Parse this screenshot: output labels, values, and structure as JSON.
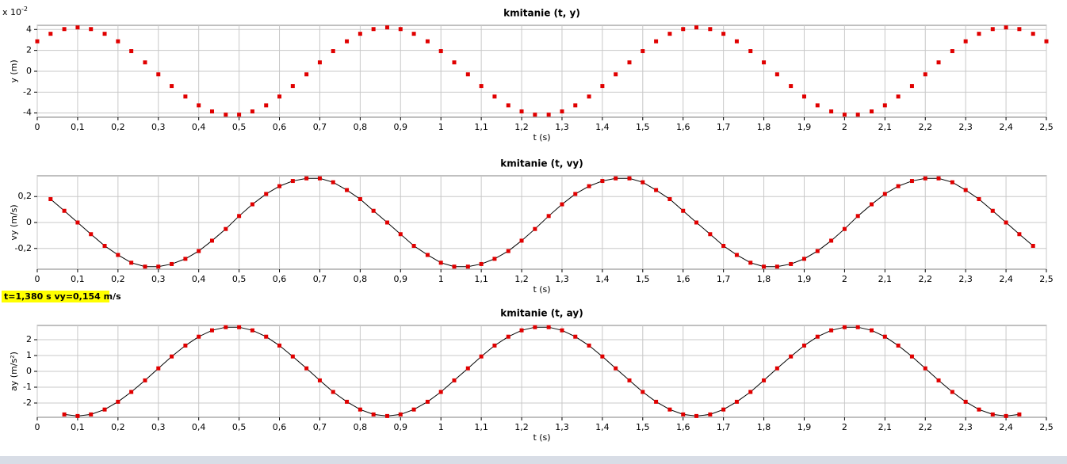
{
  "chart_data": [
    {
      "type": "scatter",
      "title": "kmitanie (t, y)",
      "xlabel": "t (s)",
      "ylabel": "y (m)",
      "y_multiplier": {
        "base": "x 10",
        "exponent": "-2"
      },
      "color": "#e00000",
      "grid": true,
      "xlim": [
        0,
        2.5
      ],
      "ylim": [
        -4.4,
        4.4
      ],
      "xticks": [
        0,
        {
          "value": 0.1,
          "label": "0,1"
        },
        {
          "value": 0.2,
          "label": "0,2"
        },
        {
          "value": 0.3,
          "label": "0,3"
        },
        {
          "value": 0.4,
          "label": "0,4"
        },
        {
          "value": 0.5,
          "label": "0,5"
        },
        {
          "value": 0.6,
          "label": "0,6"
        },
        {
          "value": 0.7,
          "label": "0,7"
        },
        {
          "value": 0.8,
          "label": "0,8"
        },
        {
          "value": 0.9,
          "label": "0,9"
        },
        1,
        {
          "value": 1.1,
          "label": "1,1"
        },
        {
          "value": 1.2,
          "label": "1,2"
        },
        {
          "value": 1.3,
          "label": "1,3"
        },
        {
          "value": 1.4,
          "label": "1,4"
        },
        {
          "value": 1.5,
          "label": "1,5"
        },
        {
          "value": 1.6,
          "label": "1,6"
        },
        {
          "value": 1.7,
          "label": "1,7"
        },
        {
          "value": 1.8,
          "label": "1,8"
        },
        {
          "value": 1.9,
          "label": "1,9"
        },
        2,
        {
          "value": 2.1,
          "label": "2,1"
        },
        {
          "value": 2.2,
          "label": "2,2"
        },
        {
          "value": 2.3,
          "label": "2,3"
        },
        {
          "value": 2.4,
          "label": "2,4"
        },
        {
          "value": 2.5,
          "label": "2,5"
        }
      ],
      "yticks": [
        4,
        2,
        0,
        -2,
        -4
      ],
      "x": [
        0,
        0.033,
        0.067,
        0.1,
        0.133,
        0.167,
        0.2,
        0.233,
        0.267,
        0.3,
        0.333,
        0.367,
        0.4,
        0.433,
        0.467,
        0.5,
        0.533,
        0.567,
        0.6,
        0.633,
        0.667,
        0.7,
        0.733,
        0.767,
        0.8,
        0.833,
        0.867,
        0.9,
        0.933,
        0.967,
        1,
        1.033,
        1.067,
        1.1,
        1.133,
        1.167,
        1.2,
        1.233,
        1.267,
        1.3,
        1.333,
        1.367,
        1.4,
        1.433,
        1.467,
        1.5,
        1.533,
        1.567,
        1.6,
        1.633,
        1.667,
        1.7,
        1.733,
        1.767,
        1.8,
        1.833,
        1.867,
        1.9,
        1.933,
        1.967,
        2,
        2.033,
        2.067,
        2.1,
        2.133,
        2.167,
        2.2,
        2.233,
        2.267,
        2.3,
        2.333,
        2.367,
        2.4,
        2.433,
        2.467,
        2.5
      ],
      "values": [
        2.87,
        3.59,
        4.04,
        4.2,
        4.04,
        3.59,
        2.87,
        1.93,
        0.85,
        -0.29,
        -1.41,
        -2.42,
        -3.26,
        -3.85,
        -4.16,
        -4.16,
        -3.85,
        -3.26,
        -2.42,
        -1.41,
        -0.29,
        0.85,
        1.93,
        2.87,
        3.59,
        4.04,
        4.2,
        4.04,
        3.59,
        2.87,
        1.93,
        0.85,
        -0.29,
        -1.41,
        -2.42,
        -3.26,
        -3.85,
        -4.16,
        -4.16,
        -3.85,
        -3.26,
        -2.42,
        -1.41,
        -0.29,
        0.85,
        1.93,
        2.87,
        3.59,
        4.04,
        4.2,
        4.04,
        3.59,
        2.87,
        1.93,
        0.85,
        -0.29,
        -1.41,
        -2.42,
        -3.26,
        -3.85,
        -4.16,
        -4.16,
        -3.85,
        -3.26,
        -2.42,
        -1.41,
        -0.29,
        0.85,
        1.93,
        2.87,
        3.59,
        4.04,
        4.2,
        4.04,
        3.59,
        2.87
      ]
    },
    {
      "type": "line",
      "title": "kmitanie (t, vy)",
      "xlabel": "t (s)",
      "ylabel": "vy (m/s)",
      "color": "#e00000",
      "line_color": "#000000",
      "grid": true,
      "xlim": [
        0,
        2.5
      ],
      "ylim": [
        -0.36,
        0.36
      ],
      "xticks": [
        0,
        {
          "value": 0.1,
          "label": "0,1"
        },
        {
          "value": 0.2,
          "label": "0,2"
        },
        {
          "value": 0.3,
          "label": "0,3"
        },
        {
          "value": 0.4,
          "label": "0,4"
        },
        {
          "value": 0.5,
          "label": "0,5"
        },
        {
          "value": 0.6,
          "label": "0,6"
        },
        {
          "value": 0.7,
          "label": "0,7"
        },
        {
          "value": 0.8,
          "label": "0,8"
        },
        {
          "value": 0.9,
          "label": "0,9"
        },
        1,
        {
          "value": 1.1,
          "label": "1,1"
        },
        {
          "value": 1.2,
          "label": "1,2"
        },
        {
          "value": 1.3,
          "label": "1,3"
        },
        {
          "value": 1.4,
          "label": "1,4"
        },
        {
          "value": 1.5,
          "label": "1,5"
        },
        {
          "value": 1.6,
          "label": "1,6"
        },
        {
          "value": 1.7,
          "label": "1,7"
        },
        {
          "value": 1.8,
          "label": "1,8"
        },
        {
          "value": 1.9,
          "label": "1,9"
        },
        2,
        {
          "value": 2.1,
          "label": "2,1"
        },
        {
          "value": 2.2,
          "label": "2,2"
        },
        {
          "value": 2.3,
          "label": "2,3"
        },
        {
          "value": 2.4,
          "label": "2,4"
        },
        {
          "value": 2.5,
          "label": "2,5"
        }
      ],
      "yticks": [
        {
          "value": 0.2,
          "label": "0,2"
        },
        0,
        {
          "value": -0.2,
          "label": "-0,2"
        }
      ],
      "x": [
        0.033,
        0.067,
        0.1,
        0.133,
        0.167,
        0.2,
        0.233,
        0.267,
        0.3,
        0.333,
        0.367,
        0.4,
        0.433,
        0.467,
        0.5,
        0.533,
        0.567,
        0.6,
        0.633,
        0.667,
        0.7,
        0.733,
        0.767,
        0.8,
        0.833,
        0.867,
        0.9,
        0.933,
        0.967,
        1,
        1.033,
        1.067,
        1.1,
        1.133,
        1.167,
        1.2,
        1.233,
        1.267,
        1.3,
        1.333,
        1.367,
        1.4,
        1.433,
        1.467,
        1.5,
        1.533,
        1.567,
        1.6,
        1.633,
        1.667,
        1.7,
        1.733,
        1.767,
        1.8,
        1.833,
        1.867,
        1.9,
        1.933,
        1.967,
        2,
        2.033,
        2.067,
        2.1,
        2.133,
        2.167,
        2.2,
        2.233,
        2.267,
        2.3,
        2.333,
        2.367,
        2.4,
        2.433,
        2.467
      ],
      "values": [
        0.18,
        0.09,
        0,
        -0.09,
        -0.18,
        -0.25,
        -0.31,
        -0.34,
        -0.34,
        -0.32,
        -0.28,
        -0.22,
        -0.14,
        -0.05,
        0.05,
        0.14,
        0.22,
        0.28,
        0.32,
        0.34,
        0.34,
        0.31,
        0.25,
        0.18,
        0.09,
        0,
        -0.09,
        -0.18,
        -0.25,
        -0.31,
        -0.34,
        -0.34,
        -0.32,
        -0.28,
        -0.22,
        -0.14,
        -0.05,
        0.05,
        0.14,
        0.22,
        0.28,
        0.32,
        0.34,
        0.34,
        0.31,
        0.25,
        0.18,
        0.09,
        0,
        -0.09,
        -0.18,
        -0.25,
        -0.31,
        -0.34,
        -0.34,
        -0.32,
        -0.28,
        -0.22,
        -0.14,
        -0.05,
        0.05,
        0.14,
        0.22,
        0.28,
        0.32,
        0.34,
        0.34,
        0.31,
        0.25,
        0.18,
        0.09,
        0,
        -0.09,
        -0.18
      ],
      "status": "t=1,380 s  vy=0,154 m/s"
    },
    {
      "type": "line",
      "title": "kmitanie (t, ay)",
      "xlabel": "t (s)",
      "ylabel": "ay (m/s²)",
      "color": "#e00000",
      "line_color": "#000000",
      "grid": true,
      "xlim": [
        0,
        2.5
      ],
      "ylim": [
        -2.9,
        2.9
      ],
      "xticks": [
        0,
        {
          "value": 0.1,
          "label": "0,1"
        },
        {
          "value": 0.2,
          "label": "0,2"
        },
        {
          "value": 0.3,
          "label": "0,3"
        },
        {
          "value": 0.4,
          "label": "0,4"
        },
        {
          "value": 0.5,
          "label": "0,5"
        },
        {
          "value": 0.6,
          "label": "0,6"
        },
        {
          "value": 0.7,
          "label": "0,7"
        },
        {
          "value": 0.8,
          "label": "0,8"
        },
        {
          "value": 0.9,
          "label": "0,9"
        },
        1,
        {
          "value": 1.1,
          "label": "1,1"
        },
        {
          "value": 1.2,
          "label": "1,2"
        },
        {
          "value": 1.3,
          "label": "1,3"
        },
        {
          "value": 1.4,
          "label": "1,4"
        },
        {
          "value": 1.5,
          "label": "1,5"
        },
        {
          "value": 1.6,
          "label": "1,6"
        },
        {
          "value": 1.7,
          "label": "1,7"
        },
        {
          "value": 1.8,
          "label": "1,8"
        },
        {
          "value": 1.9,
          "label": "1,9"
        },
        2,
        {
          "value": 2.1,
          "label": "2,1"
        },
        {
          "value": 2.2,
          "label": "2,2"
        },
        {
          "value": 2.3,
          "label": "2,3"
        },
        {
          "value": 2.4,
          "label": "2,4"
        },
        {
          "value": 2.5,
          "label": "2,5"
        }
      ],
      "yticks": [
        2,
        1,
        0,
        -1,
        -2
      ],
      "x": [
        0.067,
        0.1,
        0.133,
        0.167,
        0.2,
        0.233,
        0.267,
        0.3,
        0.333,
        0.367,
        0.4,
        0.433,
        0.467,
        0.5,
        0.533,
        0.567,
        0.6,
        0.633,
        0.667,
        0.7,
        0.733,
        0.767,
        0.8,
        0.833,
        0.867,
        0.9,
        0.933,
        0.967,
        1,
        1.033,
        1.067,
        1.1,
        1.133,
        1.167,
        1.2,
        1.233,
        1.267,
        1.3,
        1.333,
        1.367,
        1.4,
        1.433,
        1.467,
        1.5,
        1.533,
        1.567,
        1.6,
        1.633,
        1.667,
        1.7,
        1.733,
        1.767,
        1.8,
        1.833,
        1.867,
        1.9,
        1.933,
        1.967,
        2,
        2.033,
        2.067,
        2.1,
        2.133,
        2.167,
        2.2,
        2.233,
        2.267,
        2.3,
        2.333,
        2.367,
        2.4,
        2.433
      ],
      "values": [
        -2.72,
        -2.82,
        -2.72,
        -2.41,
        -1.92,
        -1.3,
        -0.57,
        0.19,
        0.94,
        1.63,
        2.19,
        2.59,
        2.79,
        2.79,
        2.59,
        2.19,
        1.63,
        0.94,
        0.19,
        -0.57,
        -1.3,
        -1.92,
        -2.41,
        -2.72,
        -2.82,
        -2.72,
        -2.41,
        -1.92,
        -1.3,
        -0.57,
        0.19,
        0.94,
        1.63,
        2.19,
        2.59,
        2.79,
        2.79,
        2.59,
        2.19,
        1.63,
        0.94,
        0.19,
        -0.57,
        -1.3,
        -1.92,
        -2.41,
        -2.72,
        -2.82,
        -2.72,
        -2.41,
        -1.92,
        -1.3,
        -0.57,
        0.19,
        0.94,
        1.63,
        2.19,
        2.59,
        2.79,
        2.79,
        2.59,
        2.19,
        1.63,
        0.94,
        0.19,
        -0.57,
        -1.3,
        -1.92,
        -2.41,
        -2.72,
        -2.82,
        -2.72
      ]
    }
  ]
}
